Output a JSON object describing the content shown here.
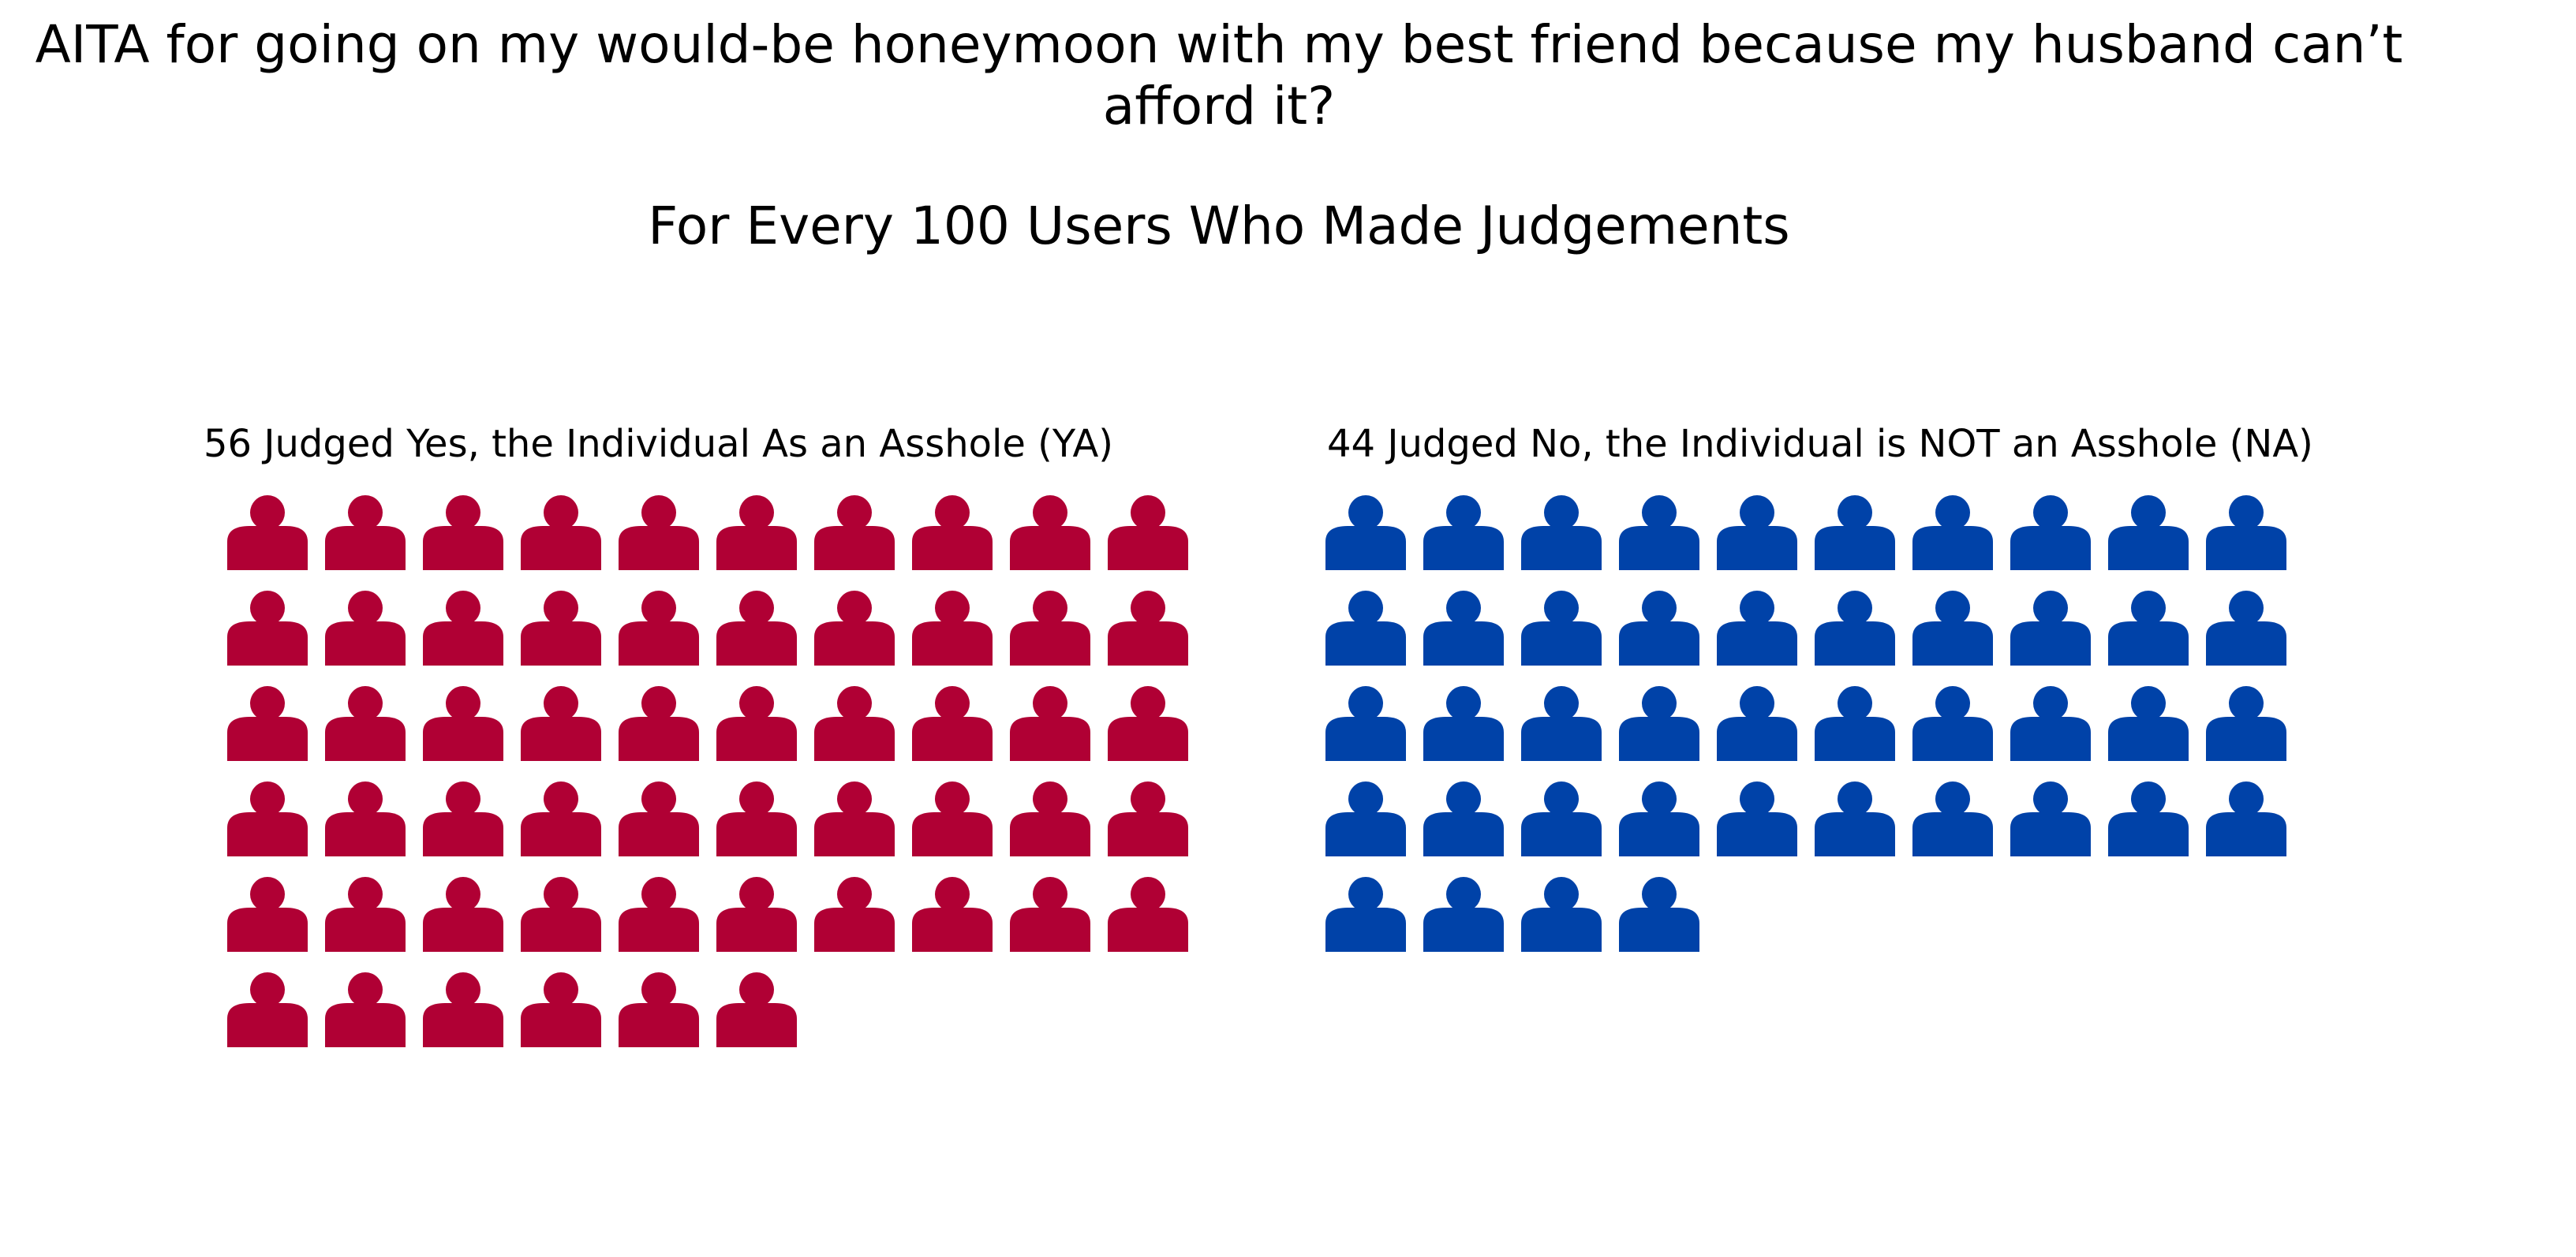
{
  "chart_data": {
    "type": "pictogram",
    "title": "AITA for going on my would-be honeymoon with my best friend because my husband can’t afford it?",
    "title_line1": "AITA for going on my would-be honeymoon with my best friend because my husband can’t",
    "title_line2": "afford it?",
    "subtitle": "For Every 100 Users Who Made Judgements",
    "icons_per_row": 10,
    "total": 100,
    "series": [
      {
        "key": "ya",
        "name": "YA",
        "label": "56 Judged Yes, the Individual As an Asshole (YA)",
        "value": 56,
        "color": "#B00034"
      },
      {
        "key": "na",
        "name": "NA",
        "label": "44 Judged No, the Individual is NOT an Asshole (NA)",
        "value": 44,
        "color": "#0042A8"
      }
    ],
    "icon": "person-icon"
  }
}
